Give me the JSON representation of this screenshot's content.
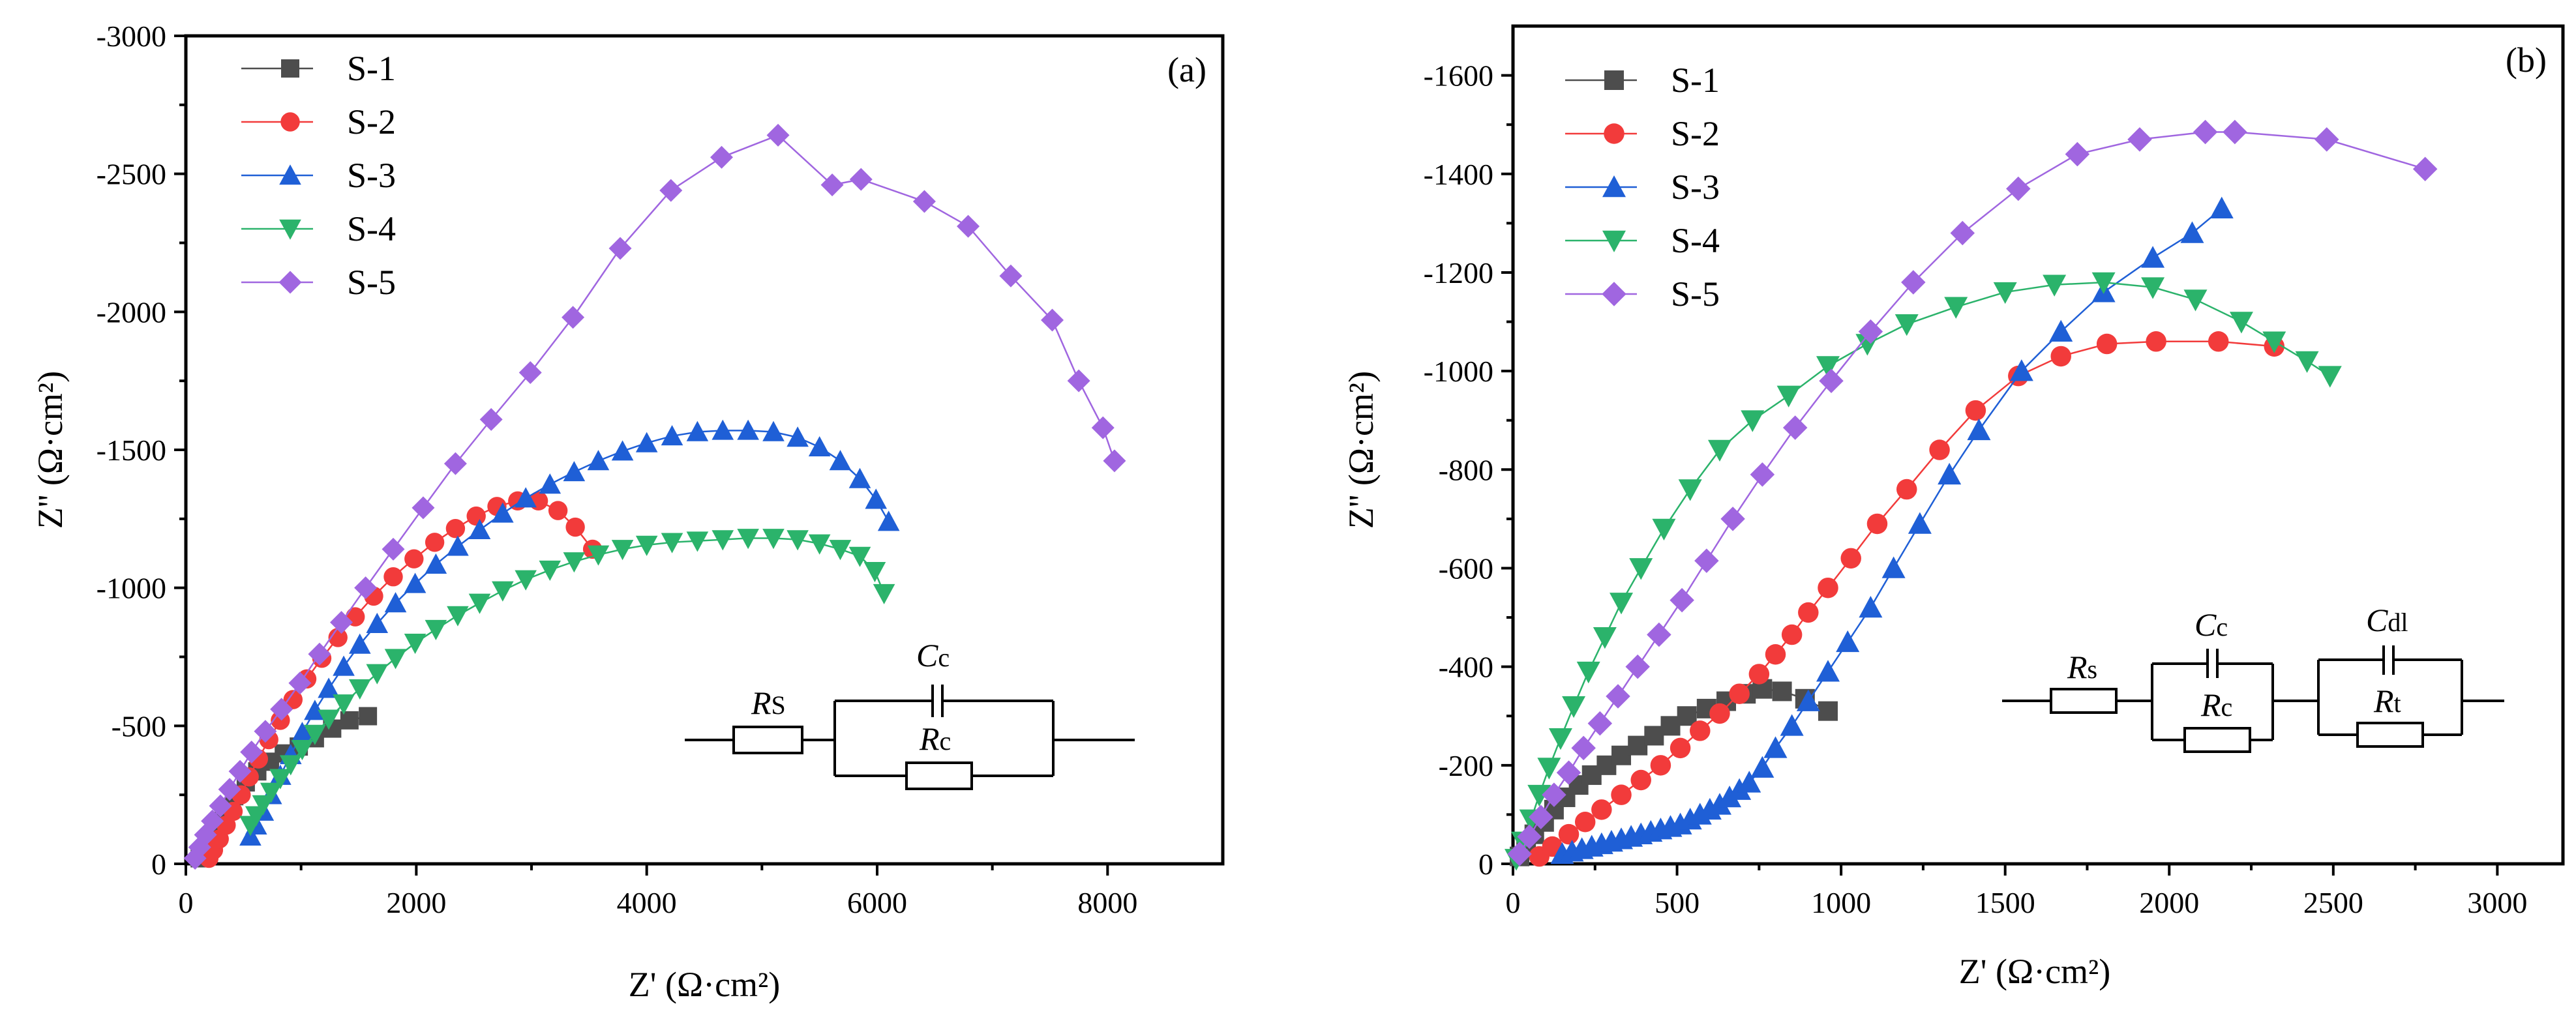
{
  "chart_data": [
    {
      "panel": "(a)",
      "type": "scatter",
      "xlabel": "Z' (Ω·cm²)",
      "ylabel": "Z'' (Ω·cm²)",
      "xlim": [
        0,
        9000
      ],
      "ylim": [
        0,
        -3000
      ],
      "xticks": [
        0,
        2000,
        4000,
        6000,
        8000
      ],
      "xtick_labels": [
        "0",
        "2000",
        "4000",
        "6000",
        "8000"
      ],
      "yticks": [
        0,
        -500,
        -1000,
        -1500,
        -2000,
        -2500,
        -3000
      ],
      "ytick_labels": [
        "0",
        "-500",
        "-1000",
        "-1500",
        "-2000",
        "-2500",
        "-3000"
      ],
      "legend": "top-left",
      "circuit": {
        "elements": [
          {
            "symbol": "R",
            "sub": "S"
          },
          {
            "symbol": "C",
            "sub": "c"
          },
          {
            "symbol": "R",
            "sub": "c"
          }
        ]
      },
      "series": [
        {
          "name": "S-1",
          "color": "#4d4d4d",
          "marker": "square",
          "x": [
            120,
            180,
            250,
            330,
            420,
            520,
            620,
            730,
            850,
            980,
            1120,
            1270,
            1420,
            1580
          ],
          "y": [
            -20,
            -70,
            -130,
            -190,
            -245,
            -295,
            -335,
            -370,
            -400,
            -425,
            -455,
            -490,
            -520,
            -535
          ]
        },
        {
          "name": "S-2",
          "color": "#f23b3b",
          "marker": "circle",
          "x": [
            200,
            240,
            290,
            350,
            410,
            480,
            550,
            630,
            720,
            820,
            930,
            1050,
            1180,
            1320,
            1470,
            1630,
            1800,
            1980,
            2160,
            2340,
            2520,
            2700,
            2880,
            3060,
            3230,
            3380,
            3530
          ],
          "y": [
            -20,
            -50,
            -90,
            -140,
            -190,
            -250,
            -315,
            -380,
            -450,
            -520,
            -595,
            -670,
            -745,
            -820,
            -895,
            -970,
            -1040,
            -1105,
            -1165,
            -1215,
            -1260,
            -1295,
            -1315,
            -1315,
            -1280,
            -1220,
            -1140
          ]
        },
        {
          "name": "S-3",
          "color": "#1f5fd6",
          "marker": "triangle-up",
          "x": [
            560,
            610,
            670,
            740,
            820,
            910,
            1010,
            1120,
            1240,
            1370,
            1510,
            1660,
            1820,
            1990,
            2170,
            2360,
            2550,
            2750,
            2950,
            3160,
            3370,
            3580,
            3790,
            4000,
            4220,
            4440,
            4660,
            4880,
            5100,
            5310,
            5500,
            5680,
            5850,
            5990,
            6100
          ],
          "y": [
            -100,
            -140,
            -190,
            -250,
            -320,
            -395,
            -475,
            -555,
            -635,
            -715,
            -795,
            -870,
            -945,
            -1015,
            -1085,
            -1150,
            -1210,
            -1270,
            -1325,
            -1375,
            -1420,
            -1460,
            -1495,
            -1525,
            -1550,
            -1565,
            -1570,
            -1570,
            -1565,
            -1545,
            -1510,
            -1460,
            -1395,
            -1320,
            -1240
          ]
        },
        {
          "name": "S-4",
          "color": "#2bb36b",
          "marker": "triangle-down",
          "x": [
            560,
            610,
            670,
            740,
            820,
            910,
            1010,
            1120,
            1240,
            1370,
            1510,
            1660,
            1820,
            1990,
            2170,
            2360,
            2550,
            2750,
            2950,
            3160,
            3370,
            3580,
            3790,
            4000,
            4220,
            4440,
            4660,
            4880,
            5100,
            5310,
            5500,
            5680,
            5850,
            5980,
            6060
          ],
          "y": [
            -140,
            -175,
            -215,
            -260,
            -310,
            -360,
            -415,
            -470,
            -525,
            -580,
            -635,
            -690,
            -745,
            -800,
            -850,
            -900,
            -945,
            -990,
            -1030,
            -1065,
            -1095,
            -1120,
            -1140,
            -1155,
            -1165,
            -1170,
            -1175,
            -1180,
            -1180,
            -1175,
            -1160,
            -1140,
            -1115,
            -1060,
            -980
          ]
        },
        {
          "name": "S-5",
          "color": "#a066e0",
          "marker": "diamond",
          "x": [
            80,
            120,
            170,
            230,
            300,
            380,
            470,
            570,
            690,
            830,
            990,
            1160,
            1350,
            1560,
            1800,
            2060,
            2340,
            2650,
            2990,
            3360,
            3770,
            4210,
            4650,
            5140,
            5610,
            5860,
            6410,
            6790,
            7160,
            7520,
            7750,
            7960,
            8060
          ],
          "y": [
            -20,
            -60,
            -105,
            -155,
            -210,
            -270,
            -335,
            -405,
            -480,
            -560,
            -655,
            -760,
            -875,
            -1000,
            -1140,
            -1290,
            -1450,
            -1610,
            -1780,
            -1980,
            -2230,
            -2440,
            -2560,
            -2640,
            -2460,
            -2480,
            -2400,
            -2310,
            -2130,
            -1970,
            -1750,
            -1580,
            -1460
          ]
        }
      ]
    },
    {
      "panel": "(b)",
      "type": "scatter",
      "xlabel": "Z' (Ω·cm²)",
      "ylabel": "Z'' (Ω·cm²)",
      "xlim": [
        0,
        3200
      ],
      "ylim": [
        0,
        -1700
      ],
      "xticks": [
        0,
        500,
        1000,
        1500,
        2000,
        2500,
        3000
      ],
      "xtick_labels": [
        "0",
        "500",
        "1000",
        "1500",
        "2000",
        "2500",
        "3000"
      ],
      "yticks": [
        0,
        -200,
        -400,
        -600,
        -800,
        -1000,
        -1200,
        -1400,
        -1600
      ],
      "ytick_labels": [
        "0",
        "-200",
        "-400",
        "-600",
        "-800",
        "-1000",
        "-1200",
        "-1400",
        "-1600"
      ],
      "legend": "top-left",
      "circuit": {
        "elements": [
          {
            "symbol": "R",
            "sub": "s"
          },
          {
            "symbol": "C",
            "sub": "c"
          },
          {
            "symbol": "R",
            "sub": "c"
          },
          {
            "symbol": "C",
            "sub": "dl"
          },
          {
            "symbol": "R",
            "sub": "t"
          }
        ]
      },
      "series": [
        {
          "name": "S-1",
          "color": "#4d4d4d",
          "marker": "square",
          "x": [
            20,
            40,
            65,
            95,
            125,
            160,
            200,
            240,
            285,
            330,
            380,
            430,
            480,
            530,
            590,
            650,
            710,
            760,
            820,
            890,
            960
          ],
          "y": [
            -15,
            -35,
            -60,
            -85,
            -110,
            -135,
            -160,
            -180,
            -200,
            -220,
            -240,
            -260,
            -280,
            -300,
            -315,
            -330,
            -345,
            -355,
            -350,
            -335,
            -310
          ]
        },
        {
          "name": "S-2",
          "color": "#f23b3b",
          "marker": "circle",
          "x": [
            80,
            120,
            170,
            220,
            270,
            330,
            390,
            450,
            510,
            570,
            630,
            690,
            750,
            800,
            850,
            900,
            960,
            1030,
            1110,
            1200,
            1300,
            1410,
            1540,
            1670,
            1810,
            1960,
            2150,
            2320
          ],
          "y": [
            -15,
            -35,
            -60,
            -85,
            -110,
            -140,
            -170,
            -200,
            -235,
            -270,
            -305,
            -345,
            -385,
            -425,
            -465,
            -510,
            -560,
            -620,
            -690,
            -760,
            -840,
            -920,
            -990,
            -1030,
            -1055,
            -1060,
            -1060,
            -1050
          ]
        },
        {
          "name": "S-3",
          "color": "#1f5fd6",
          "marker": "triangle-up",
          "x": [
            150,
            180,
            210,
            240,
            270,
            300,
            330,
            360,
            390,
            420,
            450,
            480,
            510,
            540,
            570,
            600,
            630,
            660,
            690,
            720,
            760,
            800,
            850,
            900,
            960,
            1020,
            1090,
            1160,
            1240,
            1330,
            1420,
            1550,
            1670,
            1800,
            1950,
            2070,
            2160
          ],
          "y": [
            -20,
            -25,
            -30,
            -35,
            -40,
            -45,
            -50,
            -55,
            -60,
            -65,
            -70,
            -75,
            -80,
            -90,
            -100,
            -110,
            -120,
            -135,
            -150,
            -165,
            -195,
            -235,
            -280,
            -330,
            -390,
            -450,
            -520,
            -600,
            -690,
            -790,
            -880,
            -1000,
            -1080,
            -1160,
            -1230,
            -1280,
            -1330
          ]
        },
        {
          "name": "S-4",
          "color": "#2bb36b",
          "marker": "triangle-down",
          "x": [
            10,
            30,
            55,
            80,
            110,
            145,
            185,
            230,
            280,
            330,
            390,
            460,
            540,
            630,
            730,
            840,
            960,
            1080,
            1200,
            1350,
            1500,
            1650,
            1800,
            1950,
            2080,
            2220,
            2320,
            2420,
            2490
          ],
          "y": [
            -10,
            -45,
            -90,
            -140,
            -195,
            -255,
            -320,
            -390,
            -460,
            -530,
            -600,
            -680,
            -760,
            -840,
            -900,
            -950,
            -1010,
            -1055,
            -1095,
            -1130,
            -1160,
            -1175,
            -1180,
            -1170,
            -1145,
            -1100,
            -1060,
            -1020,
            -990
          ]
        },
        {
          "name": "S-5",
          "color": "#a066e0",
          "marker": "diamond",
          "x": [
            20,
            50,
            85,
            125,
            170,
            215,
            265,
            320,
            380,
            445,
            515,
            590,
            670,
            760,
            860,
            970,
            1090,
            1220,
            1370,
            1540,
            1720,
            1910,
            2110,
            2200,
            2480,
            2780
          ],
          "y": [
            -20,
            -55,
            -95,
            -140,
            -185,
            -235,
            -285,
            -340,
            -400,
            -465,
            -535,
            -615,
            -700,
            -790,
            -885,
            -980,
            -1080,
            -1180,
            -1280,
            -1370,
            -1440,
            -1470,
            -1485,
            -1485,
            -1470,
            -1410
          ]
        }
      ]
    }
  ]
}
